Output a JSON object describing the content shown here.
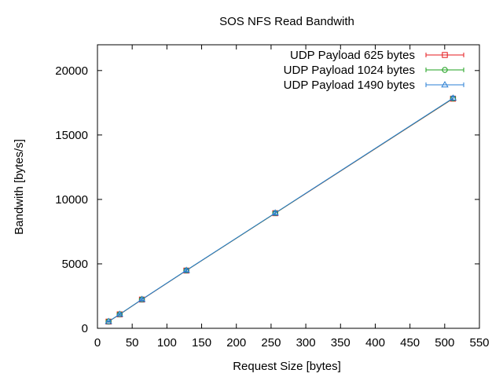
{
  "chart_data": {
    "type": "line",
    "title": "SOS NFS Read Bandwith",
    "xlabel": "Request Size [bytes]",
    "ylabel": "Bandwith [bytes/s]",
    "xlim": [
      0,
      550
    ],
    "ylim": [
      0,
      22000
    ],
    "xticks": [
      0,
      50,
      100,
      150,
      200,
      250,
      300,
      350,
      400,
      450,
      500,
      550
    ],
    "yticks": [
      0,
      5000,
      10000,
      15000,
      20000
    ],
    "grid": false,
    "legend_position": "top-right",
    "error_bars": true,
    "series": [
      {
        "name": "UDP Payload 625 bytes",
        "color": "#e41a1c",
        "marker": "square",
        "x": [
          16,
          32,
          64,
          128,
          256,
          512
        ],
        "y": [
          520,
          1080,
          2230,
          4480,
          8930,
          17820
        ],
        "err": [
          40,
          60,
          80,
          100,
          120,
          150
        ]
      },
      {
        "name": "UDP Payload 1024 bytes",
        "color": "#1ea01e",
        "marker": "circle",
        "x": [
          16,
          32,
          64,
          128,
          256,
          512
        ],
        "y": [
          525,
          1085,
          2240,
          4490,
          8940,
          17840
        ],
        "err": [
          40,
          60,
          80,
          100,
          120,
          150
        ]
      },
      {
        "name": "UDP Payload 1490 bytes",
        "color": "#2a7fd4",
        "marker": "triangle",
        "x": [
          16,
          32,
          64,
          128,
          256,
          512
        ],
        "y": [
          530,
          1090,
          2245,
          4500,
          8950,
          17860
        ],
        "err": [
          40,
          60,
          80,
          100,
          120,
          150
        ]
      }
    ]
  }
}
